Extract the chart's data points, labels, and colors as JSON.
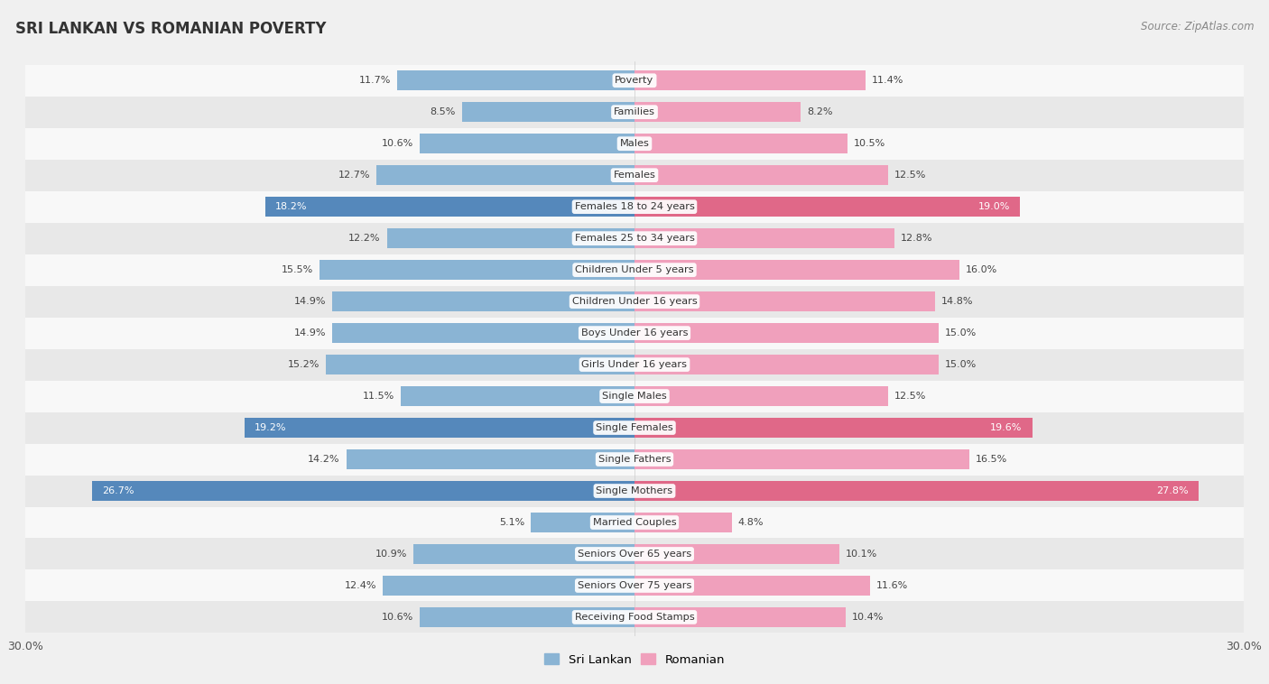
{
  "title": "SRI LANKAN VS ROMANIAN POVERTY",
  "source": "Source: ZipAtlas.com",
  "categories": [
    "Poverty",
    "Families",
    "Males",
    "Females",
    "Females 18 to 24 years",
    "Females 25 to 34 years",
    "Children Under 5 years",
    "Children Under 16 years",
    "Boys Under 16 years",
    "Girls Under 16 years",
    "Single Males",
    "Single Females",
    "Single Fathers",
    "Single Mothers",
    "Married Couples",
    "Seniors Over 65 years",
    "Seniors Over 75 years",
    "Receiving Food Stamps"
  ],
  "sri_lankan": [
    11.7,
    8.5,
    10.6,
    12.7,
    18.2,
    12.2,
    15.5,
    14.9,
    14.9,
    15.2,
    11.5,
    19.2,
    14.2,
    26.7,
    5.1,
    10.9,
    12.4,
    10.6
  ],
  "romanian": [
    11.4,
    8.2,
    10.5,
    12.5,
    19.0,
    12.8,
    16.0,
    14.8,
    15.0,
    15.0,
    12.5,
    19.6,
    16.5,
    27.8,
    4.8,
    10.1,
    11.6,
    10.4
  ],
  "sri_lankan_color": "#8ab4d4",
  "romanian_color": "#f0a0bc",
  "sri_lankan_highlight_color": "#5588bb",
  "romanian_highlight_color": "#e06888",
  "highlight_threshold": 17.5,
  "x_max": 30.0,
  "bar_height": 0.62,
  "background_color": "#f0f0f0",
  "row_color_light": "#f8f8f8",
  "row_color_dark": "#e8e8e8",
  "legend_sri_lankan": "Sri Lankan",
  "legend_romanian": "Romanian"
}
